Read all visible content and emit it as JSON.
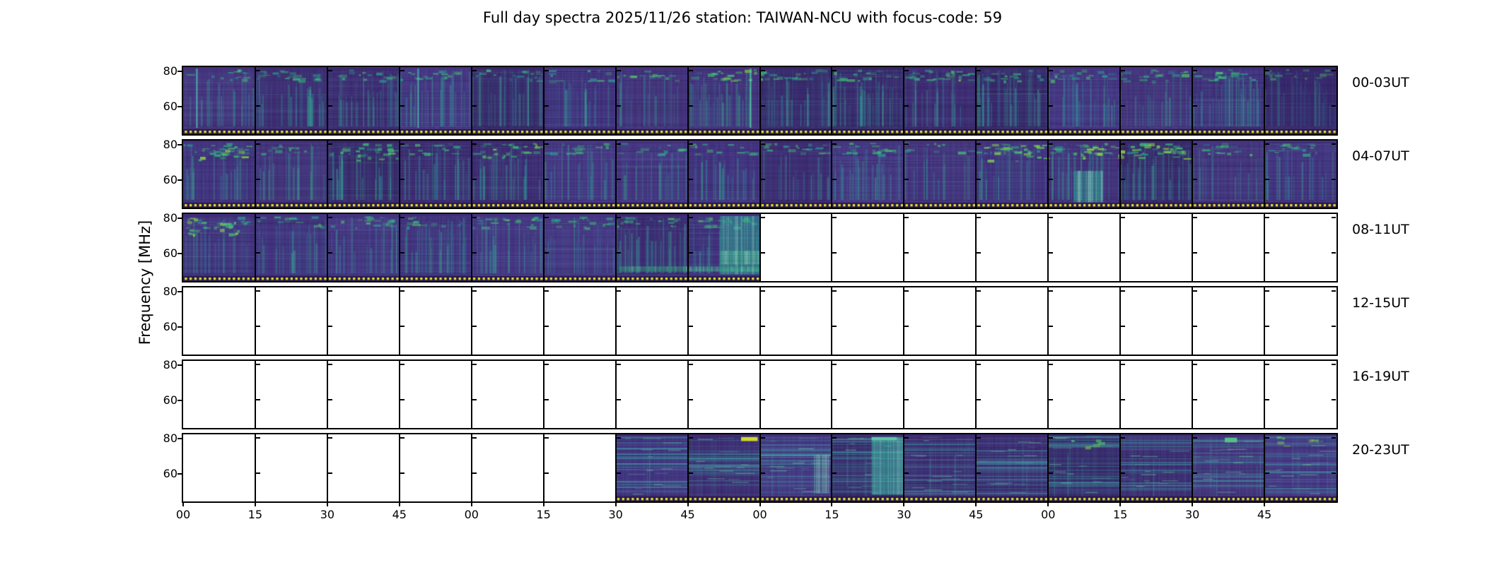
{
  "title": "Full day spectra 2025/11/26 station: TAIWAN-NCU with focus-code: 59",
  "station": "TAIWAN-NCU",
  "date": "2025/11/26",
  "focus_code": "59",
  "colors": {
    "background": "#ffffff",
    "axis": "#000000",
    "spectrum_base_purples": [
      "#46327e",
      "#3f2b74",
      "#443180",
      "#3a2a6e",
      "#483585"
    ],
    "streak_teals": [
      "#2f8fa3",
      "#2aa296",
      "#36b08a",
      "#3fb49b"
    ],
    "bright_greens": [
      "#35b779",
      "#4ac16d",
      "#8fd744"
    ],
    "marker_yellow": "#f0e32a",
    "dot_band_dark": "#241a4b",
    "empty_cell": "#ffffff"
  },
  "chart_data": {
    "type": "heatmap",
    "title": "Full day spectra 2025/11/26 station: TAIWAN-NCU with focus-code: 59",
    "ylabel": "Frequency [MHz]",
    "xlabel": "",
    "y_ticks": [
      "80",
      "60"
    ],
    "x_tick_labels": [
      "00",
      "15",
      "30",
      "45",
      "00",
      "15",
      "30",
      "45",
      "00",
      "15",
      "30",
      "45",
      "00",
      "15",
      "30",
      "45"
    ],
    "minutes_per_segment": 15,
    "segments_per_row": 16,
    "hours_per_row": 4,
    "legend": "none",
    "grid": "segment borders every 15 minutes",
    "rows": [
      {
        "label": "00-03UT",
        "coverage": "data 00:00-04:00 (all 16 segments)",
        "segments": [
          1,
          1,
          1,
          1,
          1,
          1,
          1,
          1,
          1,
          1,
          1,
          1,
          1,
          1,
          1,
          1
        ],
        "style": "vertical-streaks",
        "top_band": true,
        "seed": 7,
        "features": [
          {
            "seg": 0,
            "kind": "vline",
            "x0": 0.18,
            "color": "#4cc0b0"
          },
          {
            "seg": 3,
            "kind": "vline",
            "x0": 0.25,
            "color": "#49b8a8"
          },
          {
            "seg": 7,
            "kind": "blobs",
            "x0": 0.4,
            "x1": 1,
            "y0": 0.03,
            "y1": 0.22,
            "color": "#3dbf7f",
            "n": 14
          },
          {
            "seg": 7,
            "kind": "vline",
            "x0": 0.86,
            "color": "#57c9a0"
          },
          {
            "seg": 10,
            "kind": "blobs",
            "x0": 0.1,
            "x1": 0.9,
            "y0": 0.04,
            "y1": 0.2,
            "color": "#35b779",
            "n": 10
          },
          {
            "seg": 15,
            "kind": "shade",
            "x0": 0,
            "x1": 1,
            "y0": 0,
            "y1": 0.9,
            "color": "#2c1a5e",
            "a": 0.3
          }
        ]
      },
      {
        "label": "04-07UT",
        "coverage": "data 04:00-08:00 (all 16 segments)",
        "segments": [
          1,
          1,
          1,
          1,
          1,
          1,
          1,
          1,
          1,
          1,
          1,
          1,
          1,
          1,
          1,
          1
        ],
        "style": "vertical-streaks",
        "top_band": true,
        "seed": 21,
        "features": [
          {
            "seg": 0,
            "kind": "blobs",
            "x0": 0.2,
            "x1": 0.9,
            "y0": 0.05,
            "y1": 0.3,
            "color": "#35b779",
            "n": 18
          },
          {
            "seg": 2,
            "kind": "blobs",
            "x0": 0.3,
            "x1": 0.95,
            "y0": 0.05,
            "y1": 0.3,
            "color": "#35b779",
            "n": 12
          },
          {
            "seg": 4,
            "kind": "blobs",
            "x0": 0.1,
            "x1": 0.9,
            "y0": 0.04,
            "y1": 0.25,
            "color": "#35b779",
            "n": 16
          },
          {
            "seg": 11,
            "kind": "blobs",
            "x0": 0.1,
            "x1": 0.95,
            "y0": 0.03,
            "y1": 0.3,
            "color": "#7ad151",
            "n": 22
          },
          {
            "seg": 12,
            "kind": "block",
            "x0": 0.35,
            "x1": 0.75,
            "y0": 0.45,
            "y1": 0.92,
            "color": "#2fa89c",
            "a": 0.5
          },
          {
            "seg": 12,
            "kind": "blobs",
            "x0": 0.4,
            "x1": 1,
            "y0": 0.03,
            "y1": 0.25,
            "color": "#8fd744",
            "n": 16
          },
          {
            "seg": 13,
            "kind": "blobs",
            "x0": 0.1,
            "x1": 0.9,
            "y0": 0.03,
            "y1": 0.28,
            "color": "#7ad151",
            "n": 18
          }
        ]
      },
      {
        "label": "08-11UT",
        "coverage": "data 08:00-10:00 (segments 1-8), empty 10:00-12:00",
        "segments": [
          1,
          1,
          1,
          1,
          1,
          1,
          1,
          1,
          0,
          0,
          0,
          0,
          0,
          0,
          0,
          0
        ],
        "style": "vertical-streaks",
        "top_band": true,
        "seed": 33,
        "features": [
          {
            "seg": 0,
            "kind": "blobs",
            "x0": 0.02,
            "x1": 0.8,
            "y0": 0.04,
            "y1": 0.3,
            "color": "#44c07a",
            "n": 20
          },
          {
            "seg": 6,
            "kind": "block",
            "x0": 0.05,
            "x1": 1,
            "y0": 0.78,
            "y1": 0.86,
            "color": "#37b389",
            "a": 0.45
          },
          {
            "seg": 7,
            "kind": "block",
            "x0": 0.45,
            "x1": 0.99,
            "y0": 0.03,
            "y1": 0.9,
            "color": "#2aa69b",
            "a": 0.55
          },
          {
            "seg": 7,
            "kind": "block",
            "x0": 0.45,
            "x1": 0.99,
            "y0": 0.55,
            "y1": 0.75,
            "color": "#49c08f",
            "a": 0.35
          },
          {
            "seg": 7,
            "kind": "block",
            "x0": 0,
            "x1": 1,
            "y0": 0.78,
            "y1": 0.86,
            "color": "#37b389",
            "a": 0.45
          }
        ]
      },
      {
        "label": "12-15UT",
        "coverage": "no data (all segments empty)",
        "segments": [
          0,
          0,
          0,
          0,
          0,
          0,
          0,
          0,
          0,
          0,
          0,
          0,
          0,
          0,
          0,
          0
        ],
        "style": "vertical-streaks",
        "top_band": false,
        "seed": 41,
        "features": []
      },
      {
        "label": "16-19UT",
        "coverage": "no data (all segments empty)",
        "segments": [
          0,
          0,
          0,
          0,
          0,
          0,
          0,
          0,
          0,
          0,
          0,
          0,
          0,
          0,
          0,
          0
        ],
        "style": "vertical-streaks",
        "top_band": false,
        "seed": 47,
        "features": []
      },
      {
        "label": "20-23UT",
        "coverage": "empty 20:00-21:30, data 21:30-24:00 (segments 7-16)",
        "segments": [
          0,
          0,
          0,
          0,
          0,
          0,
          1,
          1,
          1,
          1,
          1,
          1,
          1,
          1,
          1,
          1
        ],
        "style": "horizontal-lines",
        "top_band": false,
        "seed": 55,
        "features": [
          {
            "seg": 7,
            "kind": "dash",
            "x0": 0.74,
            "x1": 0.97,
            "y0": 0.04,
            "y1": 0.1,
            "color": "#d7e22b"
          },
          {
            "seg": 8,
            "kind": "block",
            "x0": 0.75,
            "x1": 0.95,
            "y0": 0.3,
            "y1": 0.88,
            "color": "#2f9d93",
            "a": 0.3
          },
          {
            "seg": 9,
            "kind": "block",
            "x0": 0.55,
            "x1": 0.99,
            "y0": 0.04,
            "y1": 0.9,
            "color": "#35b2a5",
            "a": 0.55
          },
          {
            "seg": 9,
            "kind": "dash",
            "x0": 0.55,
            "x1": 0.9,
            "y0": 0.04,
            "y1": 0.09,
            "color": "#5fc9a8"
          },
          {
            "seg": 12,
            "kind": "blobs",
            "x0": 0.2,
            "x1": 0.8,
            "y0": 0.04,
            "y1": 0.18,
            "color": "#48c27d",
            "n": 6
          },
          {
            "seg": 14,
            "kind": "dash",
            "x0": 0.45,
            "x1": 0.62,
            "y0": 0.05,
            "y1": 0.12,
            "color": "#58c689"
          },
          {
            "seg": 15,
            "kind": "blobs",
            "x0": 0.1,
            "x1": 0.95,
            "y0": 0.03,
            "y1": 0.2,
            "color": "#4ac16d",
            "n": 8
          }
        ]
      }
    ]
  }
}
